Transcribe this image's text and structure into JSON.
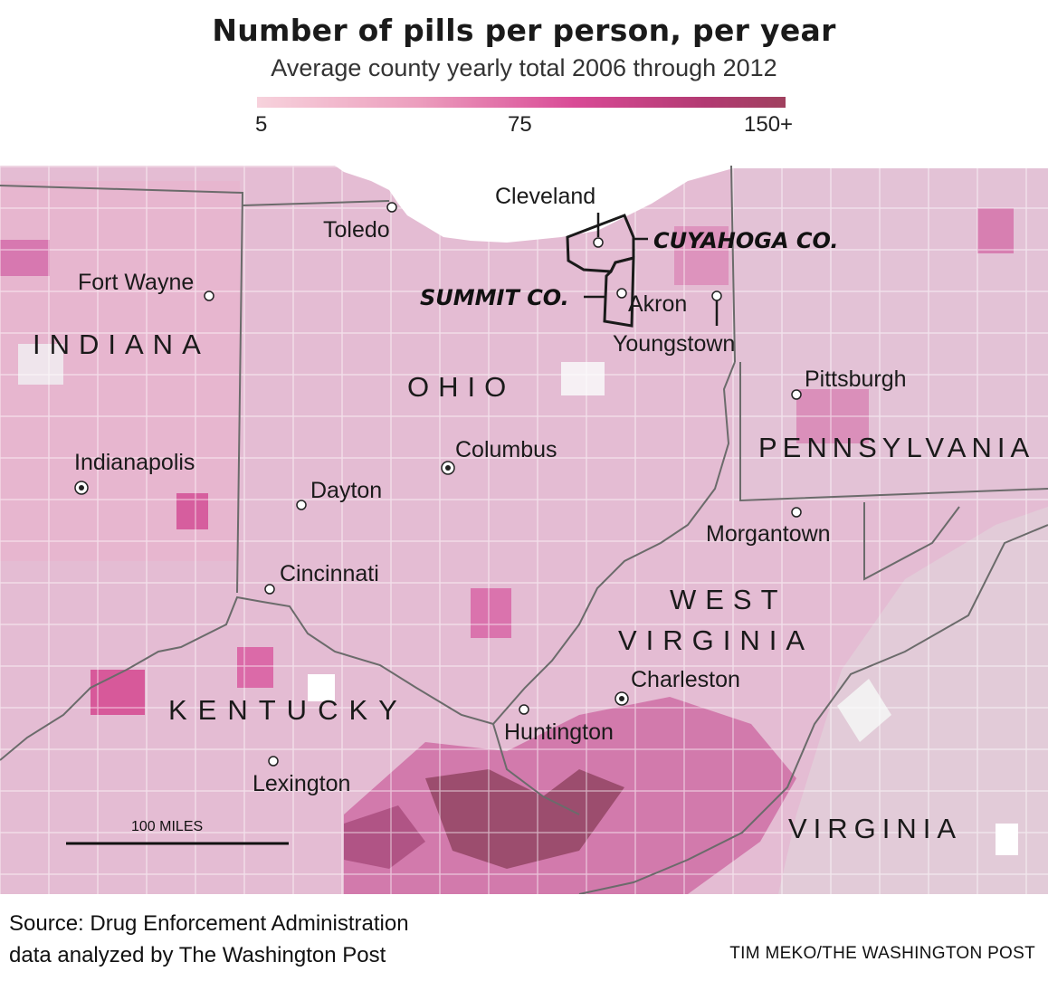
{
  "title": "Number of pills per person, per year",
  "subtitle": "Average county yearly total 2006 through 2012",
  "legend": {
    "min_label": "5",
    "mid_label": "75",
    "max_label": "150+",
    "colors": [
      "#f7d2dc",
      "#ec9fbe",
      "#d94a96",
      "#b23a72",
      "#a0405e"
    ]
  },
  "states": {
    "indiana": "INDIANA",
    "ohio": "OHIO",
    "pennsylvania": "PENNSYLVANIA",
    "west": "WEST",
    "virginia_wv": "VIRGINIA",
    "kentucky": "KENTUCKY",
    "virginia": "VIRGINIA"
  },
  "cities": {
    "cleveland": "Cleveland",
    "toledo": "Toledo",
    "fort_wayne": "Fort Wayne",
    "akron": "Akron",
    "youngstown": "Youngstown",
    "pittsburgh": "Pittsburgh",
    "columbus": "Columbus",
    "indianapolis": "Indianapolis",
    "dayton": "Dayton",
    "morgantown": "Morgantown",
    "cincinnati": "Cincinnati",
    "charleston": "Charleston",
    "huntington": "Huntington",
    "lexington": "Lexington"
  },
  "counties": {
    "cuyahoga": "CUYAHOGA CO.",
    "summit": "SUMMIT CO."
  },
  "scale_bar": "100 MILES",
  "source_line1": "Source: Drug Enforcement Administration",
  "source_line2": "data analyzed by The Washington Post",
  "credit": "TIM MEKO/THE WASHINGTON POST",
  "colors": {
    "lake": "#ffffff",
    "light": "#ead2e0",
    "medium": "#d98bb8",
    "dark": "#9c4d6e"
  }
}
